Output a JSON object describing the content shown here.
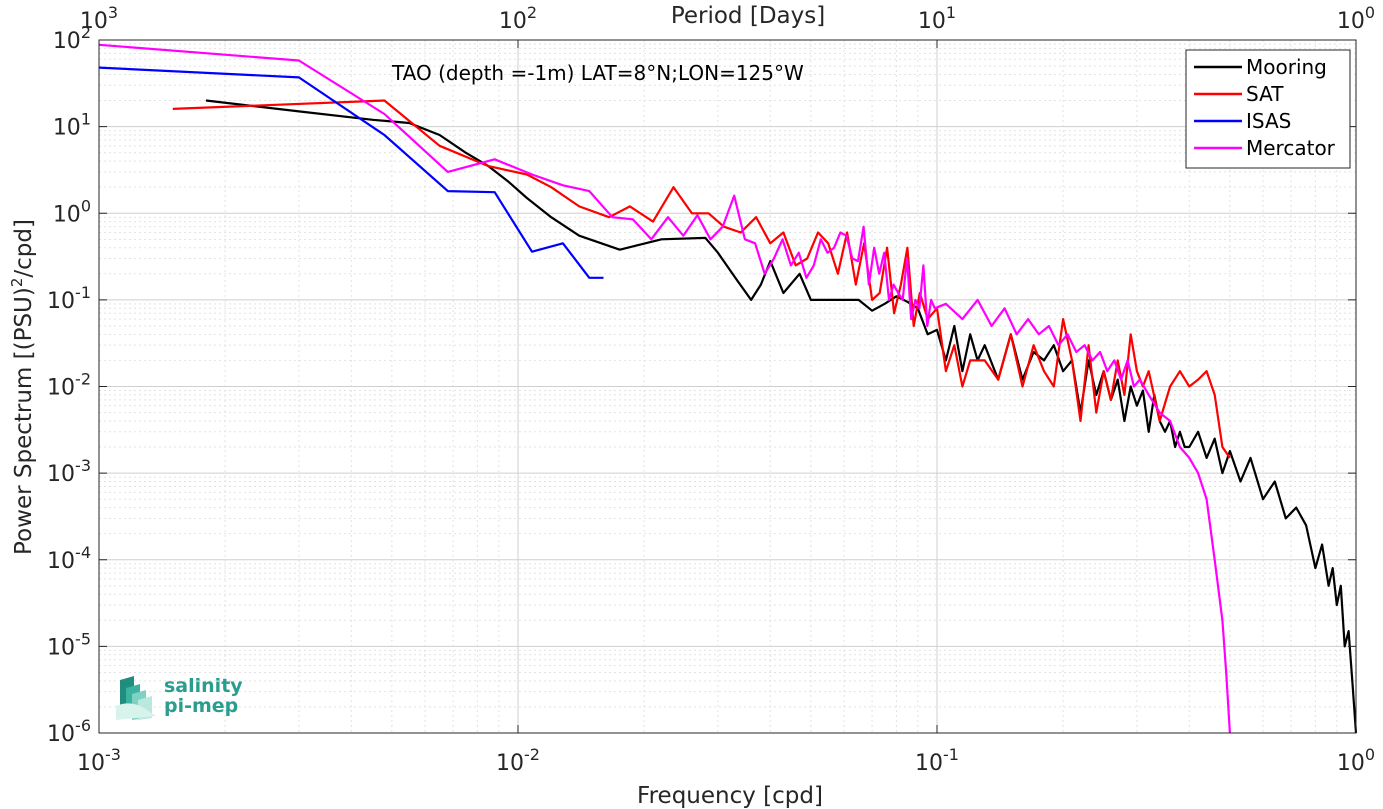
{
  "chart_data": {
    "type": "line",
    "title": "TAO (depth =-1m) LAT=8°N;LON=125°W",
    "xlabel": "Frequency [cpd]",
    "ylabel_main": "Power Spectrum [(PSU)",
    "ylabel_sup": "2",
    "ylabel_tail": "/cpd]",
    "top_xlabel": "Period [Days]",
    "xscale": "log",
    "yscale": "log",
    "xlim": [
      0.001,
      1
    ],
    "ylim": [
      1e-06,
      100
    ],
    "grid": true,
    "legend_position": "top-right",
    "x_ticks": [
      {
        "value": 0.001,
        "base": "10",
        "exp": "-3"
      },
      {
        "value": 0.01,
        "base": "10",
        "exp": "-2"
      },
      {
        "value": 0.1,
        "base": "10",
        "exp": "-1"
      },
      {
        "value": 1,
        "base": "10",
        "exp": "0"
      }
    ],
    "y_ticks": [
      {
        "value": 100,
        "base": "10",
        "exp": "2"
      },
      {
        "value": 10,
        "base": "10",
        "exp": "1"
      },
      {
        "value": 1,
        "base": "10",
        "exp": "0"
      },
      {
        "value": 0.1,
        "base": "10",
        "exp": "-1"
      },
      {
        "value": 0.01,
        "base": "10",
        "exp": "-2"
      },
      {
        "value": 0.001,
        "base": "10",
        "exp": "-3"
      },
      {
        "value": 0.0001,
        "base": "10",
        "exp": "-4"
      },
      {
        "value": 1e-05,
        "base": "10",
        "exp": "-5"
      },
      {
        "value": 1e-06,
        "base": "10",
        "exp": "-6"
      }
    ],
    "top_ticks": [
      {
        "freq": 0.001,
        "base": "10",
        "exp": "3"
      },
      {
        "freq": 0.01,
        "base": "10",
        "exp": "2"
      },
      {
        "freq": 0.1,
        "base": "10",
        "exp": "1"
      },
      {
        "freq": 1,
        "base": "10",
        "exp": "0"
      }
    ],
    "series": [
      {
        "name": "Mooring",
        "color": "#000000",
        "x": [
          0.0018,
          0.003,
          0.0045,
          0.0055,
          0.0065,
          0.0075,
          0.0085,
          0.0095,
          0.0105,
          0.012,
          0.014,
          0.0175,
          0.022,
          0.028,
          0.03,
          0.033,
          0.036,
          0.038,
          0.04,
          0.043,
          0.047,
          0.05,
          0.055,
          0.06,
          0.065,
          0.07,
          0.075,
          0.08,
          0.085,
          0.09,
          0.095,
          0.1,
          0.105,
          0.11,
          0.115,
          0.12,
          0.125,
          0.13,
          0.14,
          0.15,
          0.16,
          0.17,
          0.18,
          0.19,
          0.2,
          0.21,
          0.22,
          0.23,
          0.24,
          0.25,
          0.26,
          0.27,
          0.28,
          0.29,
          0.3,
          0.31,
          0.32,
          0.33,
          0.34,
          0.35,
          0.36,
          0.37,
          0.38,
          0.39,
          0.4,
          0.42,
          0.44,
          0.46,
          0.48,
          0.5,
          0.53,
          0.56,
          0.6,
          0.64,
          0.68,
          0.72,
          0.76,
          0.8,
          0.83,
          0.86,
          0.88,
          0.9,
          0.92,
          0.94,
          0.96,
          0.98,
          1.0
        ],
        "y": [
          20,
          15,
          12,
          11,
          8,
          5,
          3.5,
          2.3,
          1.5,
          0.9,
          0.55,
          0.38,
          0.5,
          0.52,
          0.35,
          0.18,
          0.1,
          0.15,
          0.28,
          0.12,
          0.2,
          0.1,
          0.1,
          0.1,
          0.1,
          0.075,
          0.09,
          0.11,
          0.095,
          0.08,
          0.04,
          0.045,
          0.02,
          0.05,
          0.015,
          0.04,
          0.02,
          0.03,
          0.012,
          0.04,
          0.012,
          0.025,
          0.02,
          0.03,
          0.015,
          0.02,
          0.005,
          0.02,
          0.008,
          0.015,
          0.007,
          0.012,
          0.004,
          0.01,
          0.006,
          0.009,
          0.003,
          0.008,
          0.004,
          0.003,
          0.004,
          0.002,
          0.003,
          0.002,
          0.002,
          0.003,
          0.0015,
          0.0025,
          0.001,
          0.0018,
          0.0008,
          0.0015,
          0.0005,
          0.0008,
          0.0003,
          0.0004,
          0.00025,
          8e-05,
          0.00015,
          5e-05,
          8e-05,
          3e-05,
          5e-05,
          1e-05,
          1.5e-05,
          4e-06,
          1e-06
        ]
      },
      {
        "name": "SAT",
        "color": "#ff0000",
        "x": [
          0.0015,
          0.0048,
          0.0065,
          0.0085,
          0.0105,
          0.012,
          0.014,
          0.0165,
          0.0185,
          0.021,
          0.0235,
          0.026,
          0.0285,
          0.031,
          0.034,
          0.037,
          0.04,
          0.043,
          0.046,
          0.049,
          0.052,
          0.055,
          0.058,
          0.061,
          0.064,
          0.067,
          0.07,
          0.073,
          0.076,
          0.079,
          0.082,
          0.085,
          0.088,
          0.091,
          0.095,
          0.1,
          0.105,
          0.11,
          0.115,
          0.12,
          0.13,
          0.14,
          0.15,
          0.16,
          0.17,
          0.18,
          0.19,
          0.2,
          0.21,
          0.22,
          0.23,
          0.24,
          0.25,
          0.26,
          0.27,
          0.28,
          0.29,
          0.3,
          0.31,
          0.32,
          0.34,
          0.36,
          0.38,
          0.4,
          0.42,
          0.44,
          0.46,
          0.48,
          0.5
        ],
        "y": [
          16,
          20,
          6,
          3.5,
          2.8,
          2,
          1.2,
          0.9,
          1.2,
          0.8,
          2,
          1,
          1,
          0.7,
          0.6,
          0.9,
          0.45,
          0.6,
          0.25,
          0.3,
          0.6,
          0.45,
          0.2,
          0.6,
          0.15,
          0.45,
          0.1,
          0.12,
          0.4,
          0.07,
          0.15,
          0.4,
          0.05,
          0.12,
          0.06,
          0.08,
          0.015,
          0.03,
          0.01,
          0.02,
          0.02,
          0.012,
          0.04,
          0.01,
          0.03,
          0.015,
          0.01,
          0.06,
          0.02,
          0.004,
          0.03,
          0.005,
          0.015,
          0.007,
          0.02,
          0.008,
          0.04,
          0.015,
          0.01,
          0.015,
          0.004,
          0.01,
          0.015,
          0.01,
          0.012,
          0.015,
          0.008,
          0.002,
          0.0015
        ]
      },
      {
        "name": "ISAS",
        "color": "#0000ff",
        "x": [
          0.001,
          0.003,
          0.0048,
          0.0068,
          0.0088,
          0.0108,
          0.0128,
          0.0148,
          0.016
        ],
        "y": [
          48,
          37,
          8,
          1.8,
          1.75,
          0.36,
          0.45,
          0.18,
          0.18
        ]
      },
      {
        "name": "Mercator",
        "color": "#ff00ff",
        "x": [
          0.001,
          0.003,
          0.0048,
          0.0068,
          0.0088,
          0.0108,
          0.0128,
          0.0148,
          0.0168,
          0.0188,
          0.0208,
          0.0228,
          0.0248,
          0.0268,
          0.0288,
          0.0308,
          0.0328,
          0.0348,
          0.0368,
          0.0388,
          0.0408,
          0.0428,
          0.0448,
          0.0468,
          0.0488,
          0.0508,
          0.0528,
          0.0548,
          0.0568,
          0.0588,
          0.0608,
          0.0628,
          0.0648,
          0.0668,
          0.0688,
          0.0708,
          0.0728,
          0.0748,
          0.0768,
          0.0788,
          0.0808,
          0.0828,
          0.0848,
          0.0868,
          0.0888,
          0.0908,
          0.0928,
          0.0948,
          0.0968,
          0.0988,
          0.105,
          0.115,
          0.125,
          0.135,
          0.145,
          0.155,
          0.165,
          0.175,
          0.185,
          0.195,
          0.205,
          0.215,
          0.225,
          0.235,
          0.245,
          0.255,
          0.265,
          0.275,
          0.285,
          0.295,
          0.305,
          0.32,
          0.34,
          0.36,
          0.38,
          0.4,
          0.42,
          0.44,
          0.46,
          0.48,
          0.49,
          0.5
        ],
        "y": [
          88,
          58,
          14,
          3,
          4.2,
          2.8,
          2.1,
          1.8,
          0.9,
          0.85,
          0.5,
          0.9,
          0.55,
          0.95,
          0.5,
          0.7,
          1.6,
          0.5,
          0.45,
          0.2,
          0.3,
          0.5,
          0.25,
          0.35,
          0.18,
          0.25,
          0.5,
          0.35,
          0.4,
          0.6,
          0.55,
          0.3,
          0.28,
          0.7,
          0.15,
          0.4,
          0.2,
          0.35,
          0.1,
          0.15,
          0.12,
          0.1,
          0.3,
          0.06,
          0.1,
          0.08,
          0.25,
          0.05,
          0.1,
          0.08,
          0.09,
          0.06,
          0.1,
          0.05,
          0.08,
          0.04,
          0.06,
          0.04,
          0.05,
          0.03,
          0.04,
          0.025,
          0.03,
          0.02,
          0.025,
          0.015,
          0.02,
          0.012,
          0.02,
          0.01,
          0.012,
          0.008,
          0.005,
          0.004,
          0.002,
          0.0015,
          0.001,
          0.0005,
          0.0001,
          2e-05,
          5e-06,
          1e-06
        ]
      }
    ]
  },
  "logo": {
    "line1": "salinity",
    "line2": "pi-mep"
  }
}
